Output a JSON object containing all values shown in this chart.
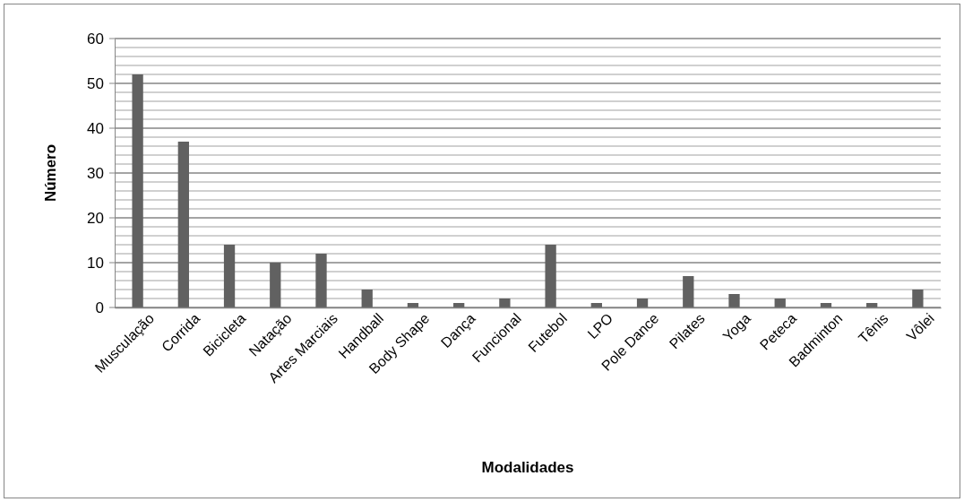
{
  "chart_data": {
    "type": "bar",
    "xlabel": "Modalidades",
    "ylabel": "Número",
    "categories": [
      "Musculação",
      "Corrida",
      "Bicicleta",
      "Natação",
      "Artes Marciais",
      "Handball",
      "Body Shape",
      "Dança",
      "Funcional",
      "Futebol",
      "LPO",
      "Pole Dance",
      "Pilates",
      "Yoga",
      "Peteca",
      "Badminton",
      "Tênis",
      "Vôlei"
    ],
    "values": [
      52,
      37,
      14,
      10,
      12,
      4,
      1,
      1,
      2,
      14,
      1,
      2,
      7,
      3,
      2,
      1,
      1,
      4
    ],
    "color": "#616161",
    "ylim": [
      0,
      60
    ],
    "yticks": [
      0,
      {
        "value": 2,
        "label": null
      },
      {
        "value": 4,
        "label": null
      },
      {
        "value": 6,
        "label": null
      },
      {
        "value": 8,
        "label": null
      },
      10,
      {
        "value": 12,
        "label": null
      },
      {
        "value": 14,
        "label": null
      },
      {
        "value": 16,
        "label": null
      },
      {
        "value": 18,
        "label": null
      },
      20,
      {
        "value": 22,
        "label": null
      },
      {
        "value": 24,
        "label": null
      },
      {
        "value": 26,
        "label": null
      },
      {
        "value": 28,
        "label": null
      },
      30,
      {
        "value": 32,
        "label": null
      },
      {
        "value": 34,
        "label": null
      },
      {
        "value": 36,
        "label": null
      },
      {
        "value": 38,
        "label": null
      },
      40,
      {
        "value": 42,
        "label": null
      },
      {
        "value": 44,
        "label": null
      },
      {
        "value": 46,
        "label": null
      },
      {
        "value": 48,
        "label": null
      },
      50,
      {
        "value": 52,
        "label": null
      },
      {
        "value": 54,
        "label": null
      },
      {
        "value": 56,
        "label": null
      },
      {
        "value": 58,
        "label": null
      },
      60
    ],
    "grid": true
  }
}
